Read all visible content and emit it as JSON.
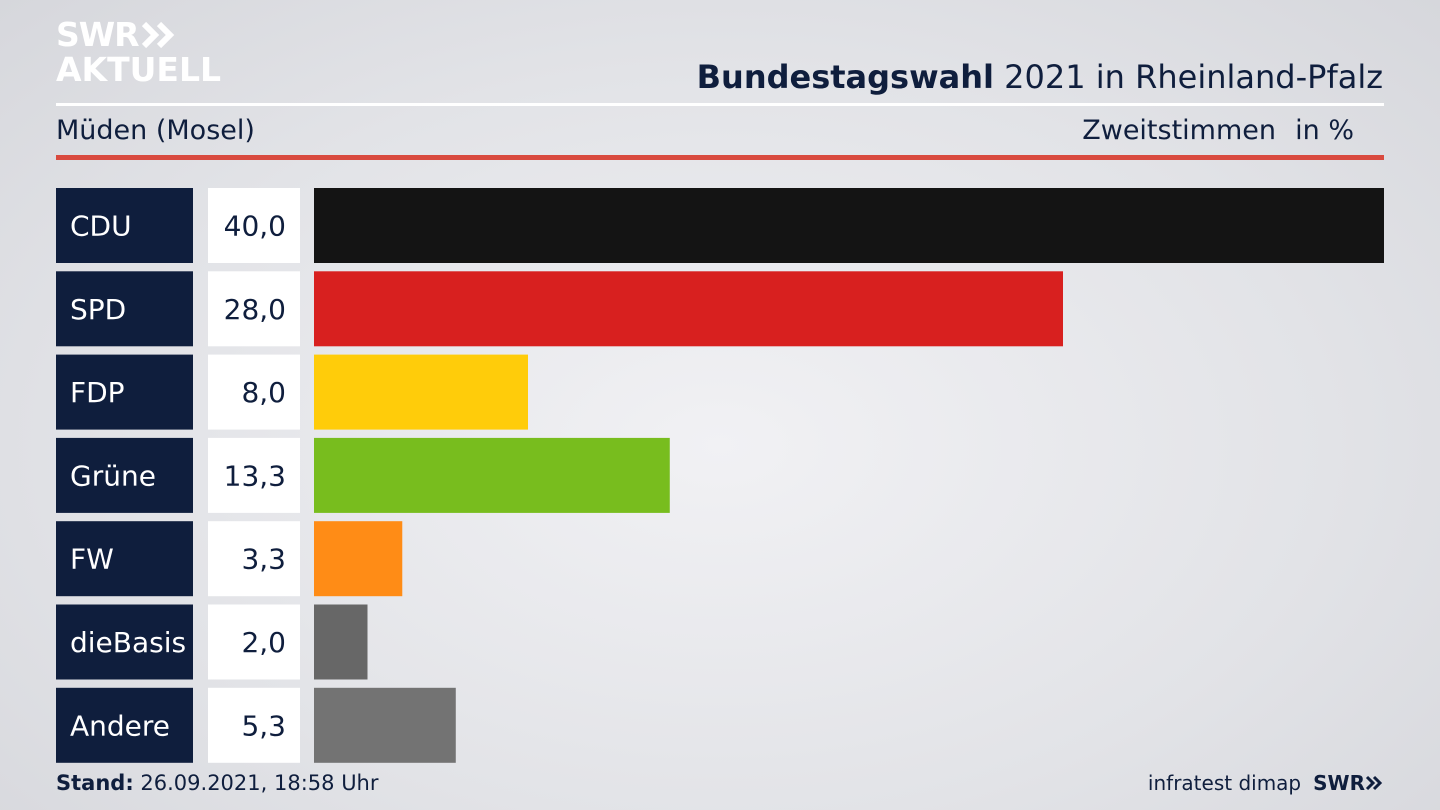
{
  "header": {
    "logo_line1": "SWR",
    "logo_line2": "AKTUELL",
    "title_bold": "Bundestagswahl",
    "title_rest": "2021 in Rheinland-Pfalz",
    "region": "Müden (Mosel)",
    "metric": "Zweitstimmen",
    "unit": "in %"
  },
  "footer": {
    "stand_label": "Stand:",
    "stand_value": "26.09.2021, 18:58 Uhr",
    "source": "infratest dimap",
    "brand": "SWR"
  },
  "chart_data": {
    "type": "bar",
    "orientation": "horizontal",
    "categories": [
      "CDU",
      "SPD",
      "FDP",
      "Grüne",
      "FW",
      "dieBasis",
      "Andere"
    ],
    "values": [
      40.0,
      28.0,
      8.0,
      13.3,
      3.3,
      2.0,
      5.3
    ],
    "value_labels": [
      "40,0",
      "28,0",
      "8,0",
      "13,3",
      "3,3",
      "2,0",
      "5,3"
    ],
    "colors": [
      "#141414",
      "#d8201f",
      "#ffcc0a",
      "#78bd1e",
      "#ff8c16",
      "#676767",
      "#737373"
    ],
    "xlim": [
      0,
      40
    ],
    "grid": false,
    "legend": false
  },
  "colors": {
    "label_bg": "#0f1e3d",
    "value_bg": "#ffffff",
    "text": "#0f1e3d",
    "accent_rule": "#d94a3f"
  }
}
